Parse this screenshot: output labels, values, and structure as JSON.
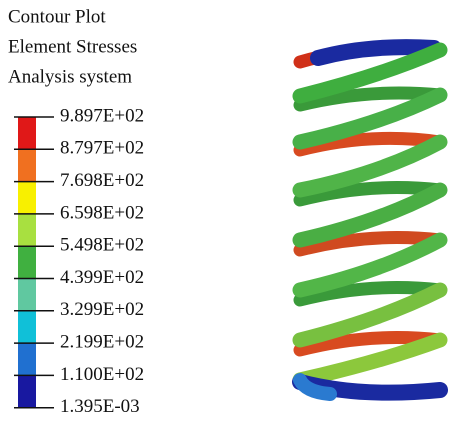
{
  "header": {
    "lines": [
      "Contour Plot",
      "Element Stresses",
      "Analysis system"
    ]
  },
  "legend": {
    "labels": [
      "9.897E+02",
      "8.797E+02",
      "7.698E+02",
      "6.598E+02",
      "5.498E+02",
      "4.399E+02",
      "3.299E+02",
      "2.199E+02",
      "1.100E+02",
      "1.395E-03"
    ]
  }
}
